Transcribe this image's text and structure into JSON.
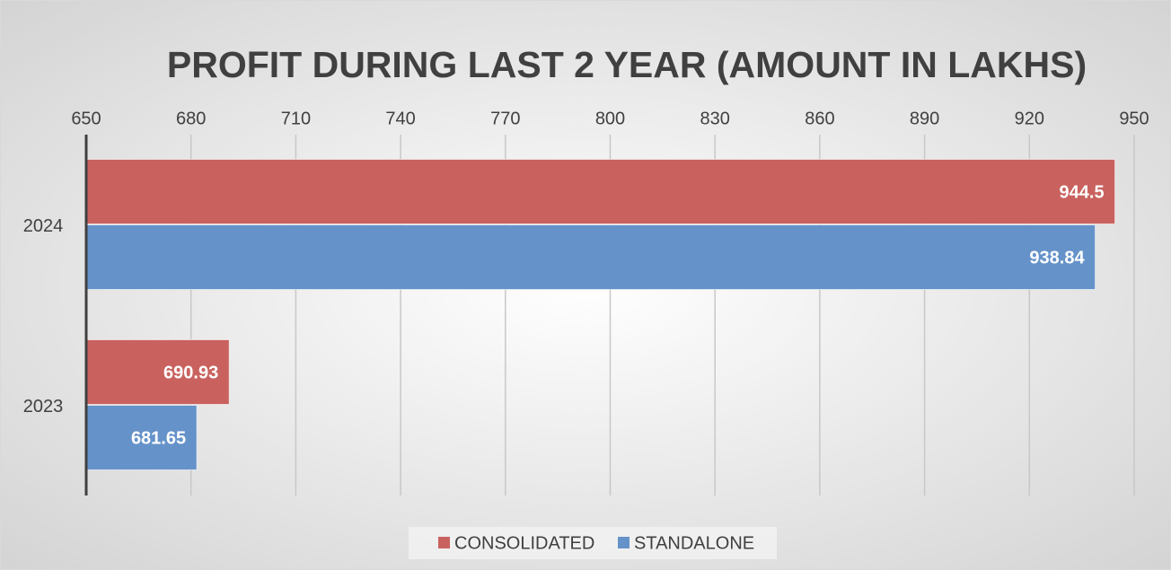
{
  "chart_data": {
    "type": "hbar",
    "title": "PROFIT DURING LAST 2 YEAR (AMOUNT IN LAKHS)",
    "categories": [
      "2023",
      "2024"
    ],
    "series": [
      {
        "name": "CONSOLIDATED",
        "color": "#c9625f",
        "values": [
          690.93,
          944.5
        ]
      },
      {
        "name": "STANDALONE",
        "color": "#6592c9",
        "values": [
          681.65,
          938.84
        ]
      }
    ],
    "xlim": [
      650,
      950
    ],
    "xticks": [
      650,
      680,
      710,
      740,
      770,
      800,
      830,
      860,
      890,
      920,
      950
    ],
    "grid": true,
    "legend": "bottom"
  }
}
